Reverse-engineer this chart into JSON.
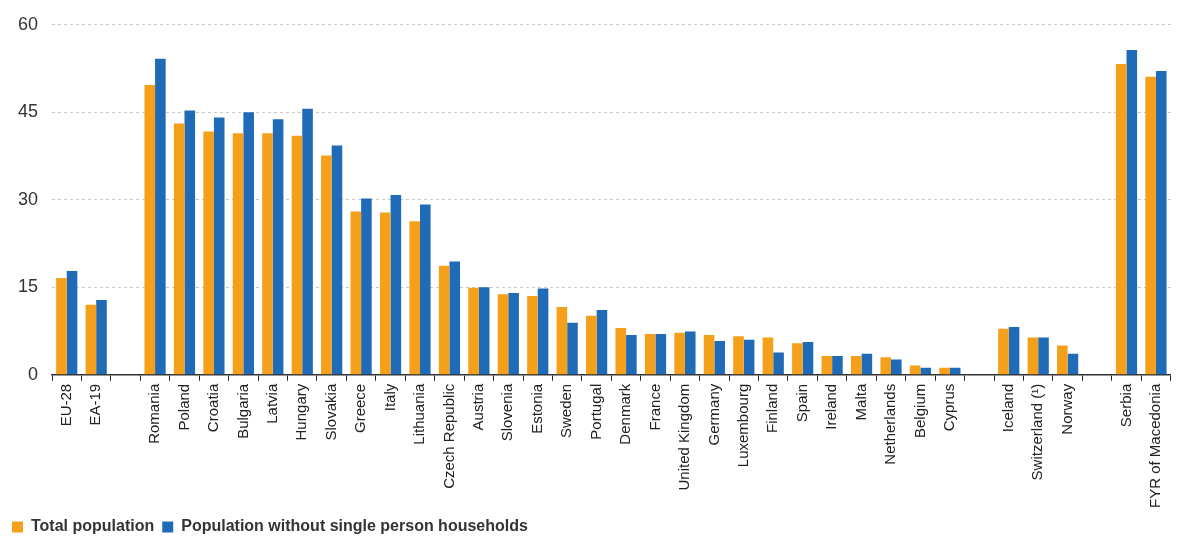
{
  "chart_data": {
    "type": "bar",
    "categories": [
      "EU-28",
      "EA-19",
      null,
      "Romania",
      "Poland",
      "Croatia",
      "Bulgaria",
      "Latvia",
      "Hungary",
      "Slovakia",
      "Greece",
      "Italy",
      "Lithuania",
      "Czech Republic",
      "Austria",
      "Slovenia",
      "Estonia",
      "Sweden",
      "Portugal",
      "Denmark",
      "France",
      "United Kingdom",
      "Germany",
      "Luxembourg",
      "Finland",
      "Spain",
      "Ireland",
      "Malta",
      "Netherlands",
      "Belgium",
      "Cyprus",
      null,
      "Iceland",
      "Switzerland (¹)",
      "Norway",
      null,
      "Serbia",
      "FYR of Macedonia"
    ],
    "series": [
      {
        "name": "Total population",
        "color": "#f5a01a",
        "values": [
          16.6,
          12.0,
          null,
          49.7,
          43.1,
          41.7,
          41.4,
          41.4,
          41.0,
          37.6,
          28.0,
          27.8,
          26.3,
          18.7,
          14.9,
          13.8,
          13.5,
          11.6,
          10.1,
          8.0,
          7.0,
          7.2,
          6.8,
          6.6,
          6.4,
          5.4,
          3.2,
          3.2,
          3.0,
          1.6,
          1.2,
          null,
          7.9,
          6.4,
          5.0,
          null,
          53.3,
          51.1
        ]
      },
      {
        "name": "Population without single person households",
        "color": "#1f6bb8",
        "values": [
          17.8,
          12.8,
          null,
          54.2,
          45.3,
          44.1,
          45.0,
          43.8,
          45.6,
          39.3,
          30.2,
          30.8,
          29.2,
          19.4,
          15.0,
          14.0,
          14.8,
          8.9,
          11.1,
          6.8,
          7.0,
          7.4,
          5.8,
          6.0,
          3.8,
          5.6,
          3.2,
          3.6,
          2.6,
          1.2,
          1.2,
          null,
          8.2,
          6.4,
          3.6,
          null,
          55.7,
          52.1
        ]
      }
    ],
    "ylim": [
      0,
      60
    ],
    "yticks": [
      0,
      15,
      30,
      45,
      60
    ],
    "grid": "y",
    "legend": "bottom"
  }
}
